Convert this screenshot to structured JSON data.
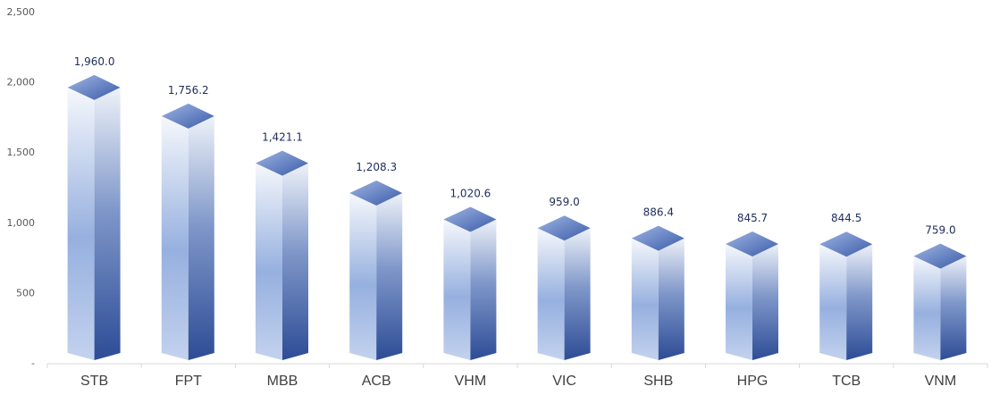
{
  "chart_data": {
    "type": "bar",
    "style": "3d-column",
    "categories": [
      "STB",
      "FPT",
      "MBB",
      "ACB",
      "VHM",
      "VIC",
      "SHB",
      "HPG",
      "TCB",
      "VNM"
    ],
    "values": [
      1960.0,
      1756.2,
      1421.1,
      1208.3,
      1020.6,
      959.0,
      886.4,
      845.7,
      844.5,
      759.0
    ],
    "data_labels": [
      "1,960.0",
      "1,756.2",
      "1,421.1",
      "1,208.3",
      "1,020.6",
      "959.0",
      "886.4",
      "845.7",
      "844.5",
      "759.0"
    ],
    "yticks": [
      {
        "value": 0,
        "label": "-"
      },
      {
        "value": 500,
        "label": "500"
      },
      {
        "value": 1000,
        "label": "1,000"
      },
      {
        "value": 1500,
        "label": "1,500"
      },
      {
        "value": 2000,
        "label": "2,000"
      },
      {
        "value": 2500,
        "label": "2,500"
      }
    ],
    "ylim": [
      0,
      2500
    ],
    "title": "",
    "xlabel": "",
    "ylabel": "",
    "grid": false,
    "legend": "none",
    "colors": {
      "bar_dark": "#2e4f99",
      "bar_mid": "#8ea9dc",
      "bar_light": "#f4f7fb",
      "axis": "#d9d9d9",
      "label": "#1f2d5a"
    }
  }
}
